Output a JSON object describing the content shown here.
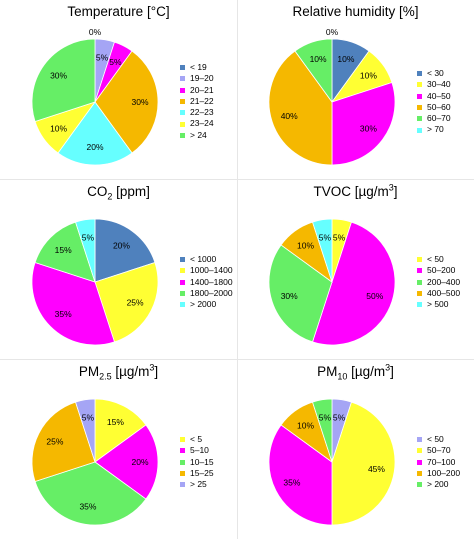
{
  "chart_data": [
    {
      "type": "pie",
      "title": "Temperature [°C]",
      "categories": [
        "< 19",
        "19–20",
        "20–21",
        "21–22",
        "22–23",
        "23–24",
        "> 24"
      ],
      "values": [
        0,
        5,
        5,
        30,
        20,
        10,
        30
      ],
      "value_labels": [
        "0%",
        "5%",
        "5%",
        "30%",
        "20%",
        "10%",
        "30%"
      ],
      "colors": [
        "#4f81bd",
        "#a5a5f5",
        "#ff00ff",
        "#f5b800",
        "#66ffff",
        "#ffff33",
        "#66ee66"
      ]
    },
    {
      "type": "pie",
      "title": "Relative humidity [%]",
      "categories": [
        "< 30",
        "30–40",
        "40–50",
        "50–60",
        "60–70",
        "> 70"
      ],
      "values": [
        10,
        10,
        30,
        40,
        10,
        0
      ],
      "value_labels": [
        "10%",
        "10%",
        "30%",
        "40%",
        "10%",
        "0%"
      ],
      "colors": [
        "#4f81bd",
        "#ffff33",
        "#ff00ff",
        "#f5b800",
        "#66ee66",
        "#66ffff"
      ]
    },
    {
      "type": "pie",
      "title": "CO",
      "title_sub": "2",
      "title_suffix": " [ppm]",
      "categories": [
        "< 1000",
        "1000–1400",
        "1400–1800",
        "1800–2000",
        "> 2000"
      ],
      "values": [
        20,
        25,
        35,
        15,
        5
      ],
      "value_labels": [
        "20%",
        "25%",
        "35%",
        "15%",
        "5%"
      ],
      "colors": [
        "#4f81bd",
        "#ffff33",
        "#ff00ff",
        "#66ee66",
        "#66ffff"
      ]
    },
    {
      "type": "pie",
      "title": "TVOC [µg/m",
      "title_sup": "3",
      "title_suffix": "]",
      "categories": [
        "< 50",
        "50–200",
        "200–400",
        "400–500",
        "> 500"
      ],
      "values": [
        5,
        50,
        30,
        10,
        5
      ],
      "value_labels": [
        "5%",
        "50%",
        "30%",
        "10%",
        "5%"
      ],
      "colors": [
        "#ffff33",
        "#ff00ff",
        "#66ee66",
        "#f5b800",
        "#66ffff"
      ]
    },
    {
      "type": "pie",
      "title": "PM",
      "title_sub": "2.5",
      "title_mid": " [µg/m",
      "title_sup": "3",
      "title_suffix": "]",
      "categories": [
        "< 5",
        "5–10",
        "10–15",
        "15–25",
        "> 25"
      ],
      "values": [
        15,
        20,
        35,
        25,
        5
      ],
      "value_labels": [
        "15%",
        "20%",
        "35%",
        "25%",
        "5%"
      ],
      "colors": [
        "#ffff33",
        "#ff00ff",
        "#66ee66",
        "#f5b800",
        "#a5a5f5"
      ]
    },
    {
      "type": "pie",
      "title": "PM",
      "title_sub": "10",
      "title_mid": " [µg/m",
      "title_sup": "3",
      "title_suffix": "]",
      "categories": [
        "< 50",
        "50–70",
        "70–100",
        "100–200",
        "> 200"
      ],
      "values": [
        5,
        45,
        35,
        10,
        5
      ],
      "value_labels": [
        "5%",
        "45%",
        "35%",
        "10%",
        "5%"
      ],
      "colors": [
        "#a5a5f5",
        "#ffff33",
        "#ff00ff",
        "#f5b800",
        "#66ee66"
      ]
    }
  ]
}
